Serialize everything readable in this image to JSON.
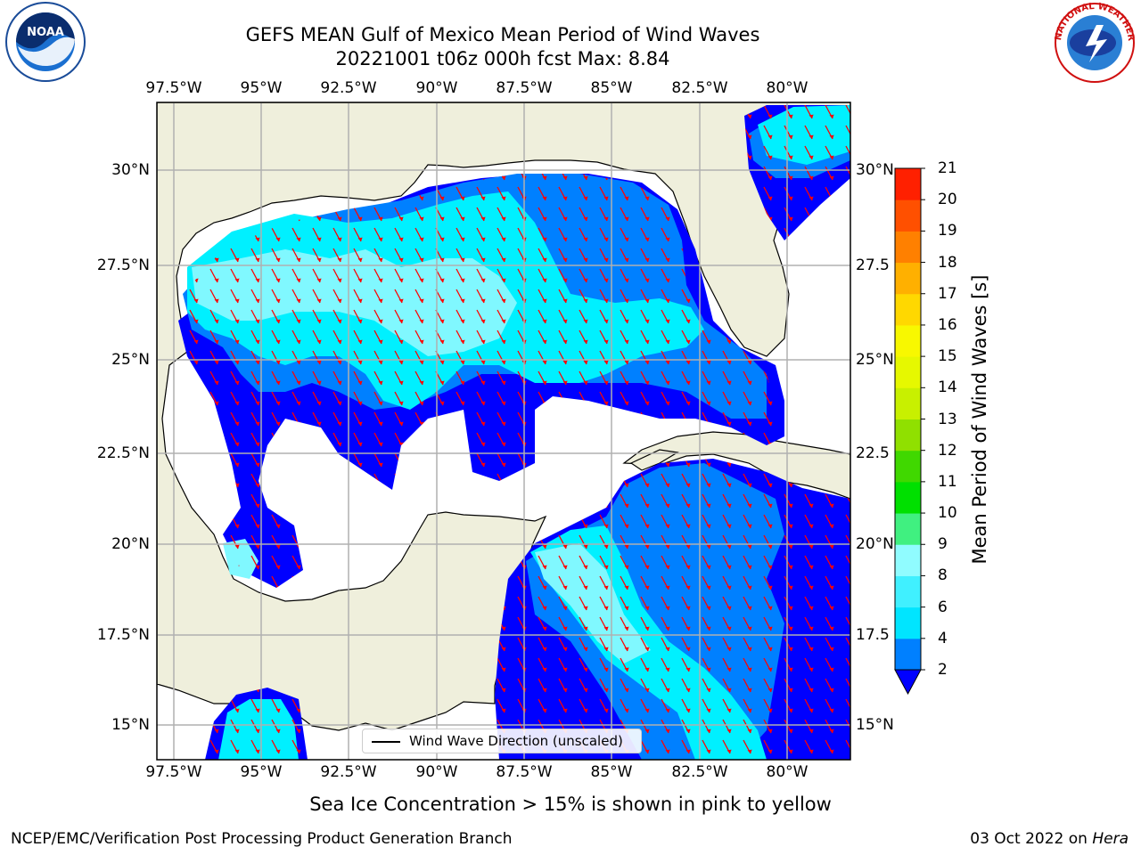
{
  "title_line1": "GEFS MEAN Gulf of Mexico Mean Period of Wind Waves",
  "title_line2": "20221001 t06z 000h fcst   Max: 8.84",
  "lon_labels": [
    "97.5°W",
    "95°W",
    "92.5°W",
    "90°W",
    "87.5°W",
    "85°W",
    "82.5°W",
    "80°W"
  ],
  "lat_labels_left": [
    "30°N",
    "27.5°N",
    "25°N",
    "22.5°N",
    "20°N",
    "17.5°N",
    "15°N"
  ],
  "lat_labels_right": [
    "30°N",
    "27.5",
    "25°N",
    "22.5",
    "20°N",
    "17.5",
    "15°N"
  ],
  "colorbar": {
    "title": "Mean Period of Wind Waves [s]",
    "ticks": [
      "2",
      "4",
      "6",
      "8",
      "9",
      "10",
      "11",
      "12",
      "13",
      "14",
      "15",
      "16",
      "17",
      "18",
      "19",
      "20",
      "21"
    ],
    "colors": [
      "#0080ff",
      "#00e5ff",
      "#40f0ff",
      "#90fcff",
      "#40f080",
      "#00e000",
      "#40d800",
      "#90e000",
      "#c8f000",
      "#e6f800",
      "#f8f800",
      "#ffd800",
      "#ffb000",
      "#ff8000",
      "#ff5000",
      "#ff2000"
    ],
    "under_color": "#0000ff"
  },
  "legend_text": "Wind Wave Direction (unscaled)",
  "caption": "Sea Ice Concentration > 15% is shown in pink to yellow",
  "footer_left": "NCEP/EMC/Verification Post Processing Product Generation Branch",
  "footer_right_date": "03 Oct 2022 on",
  "footer_right_host": "Hera",
  "colors": {
    "land": "#efefdc",
    "ocean_low": "#0000ff",
    "ocean_2_4": "#0080ff",
    "ocean_4_6": "#00f0ff",
    "ocean_6_8": "#80f8ff",
    "arrow": "#ff0000"
  },
  "icons": [
    "noaa-logo-icon",
    "nws-logo-icon"
  ],
  "logo_text": {
    "noaa_center": "NOAA",
    "nws_ring": "NATIONAL WEATHER SERVICE"
  }
}
